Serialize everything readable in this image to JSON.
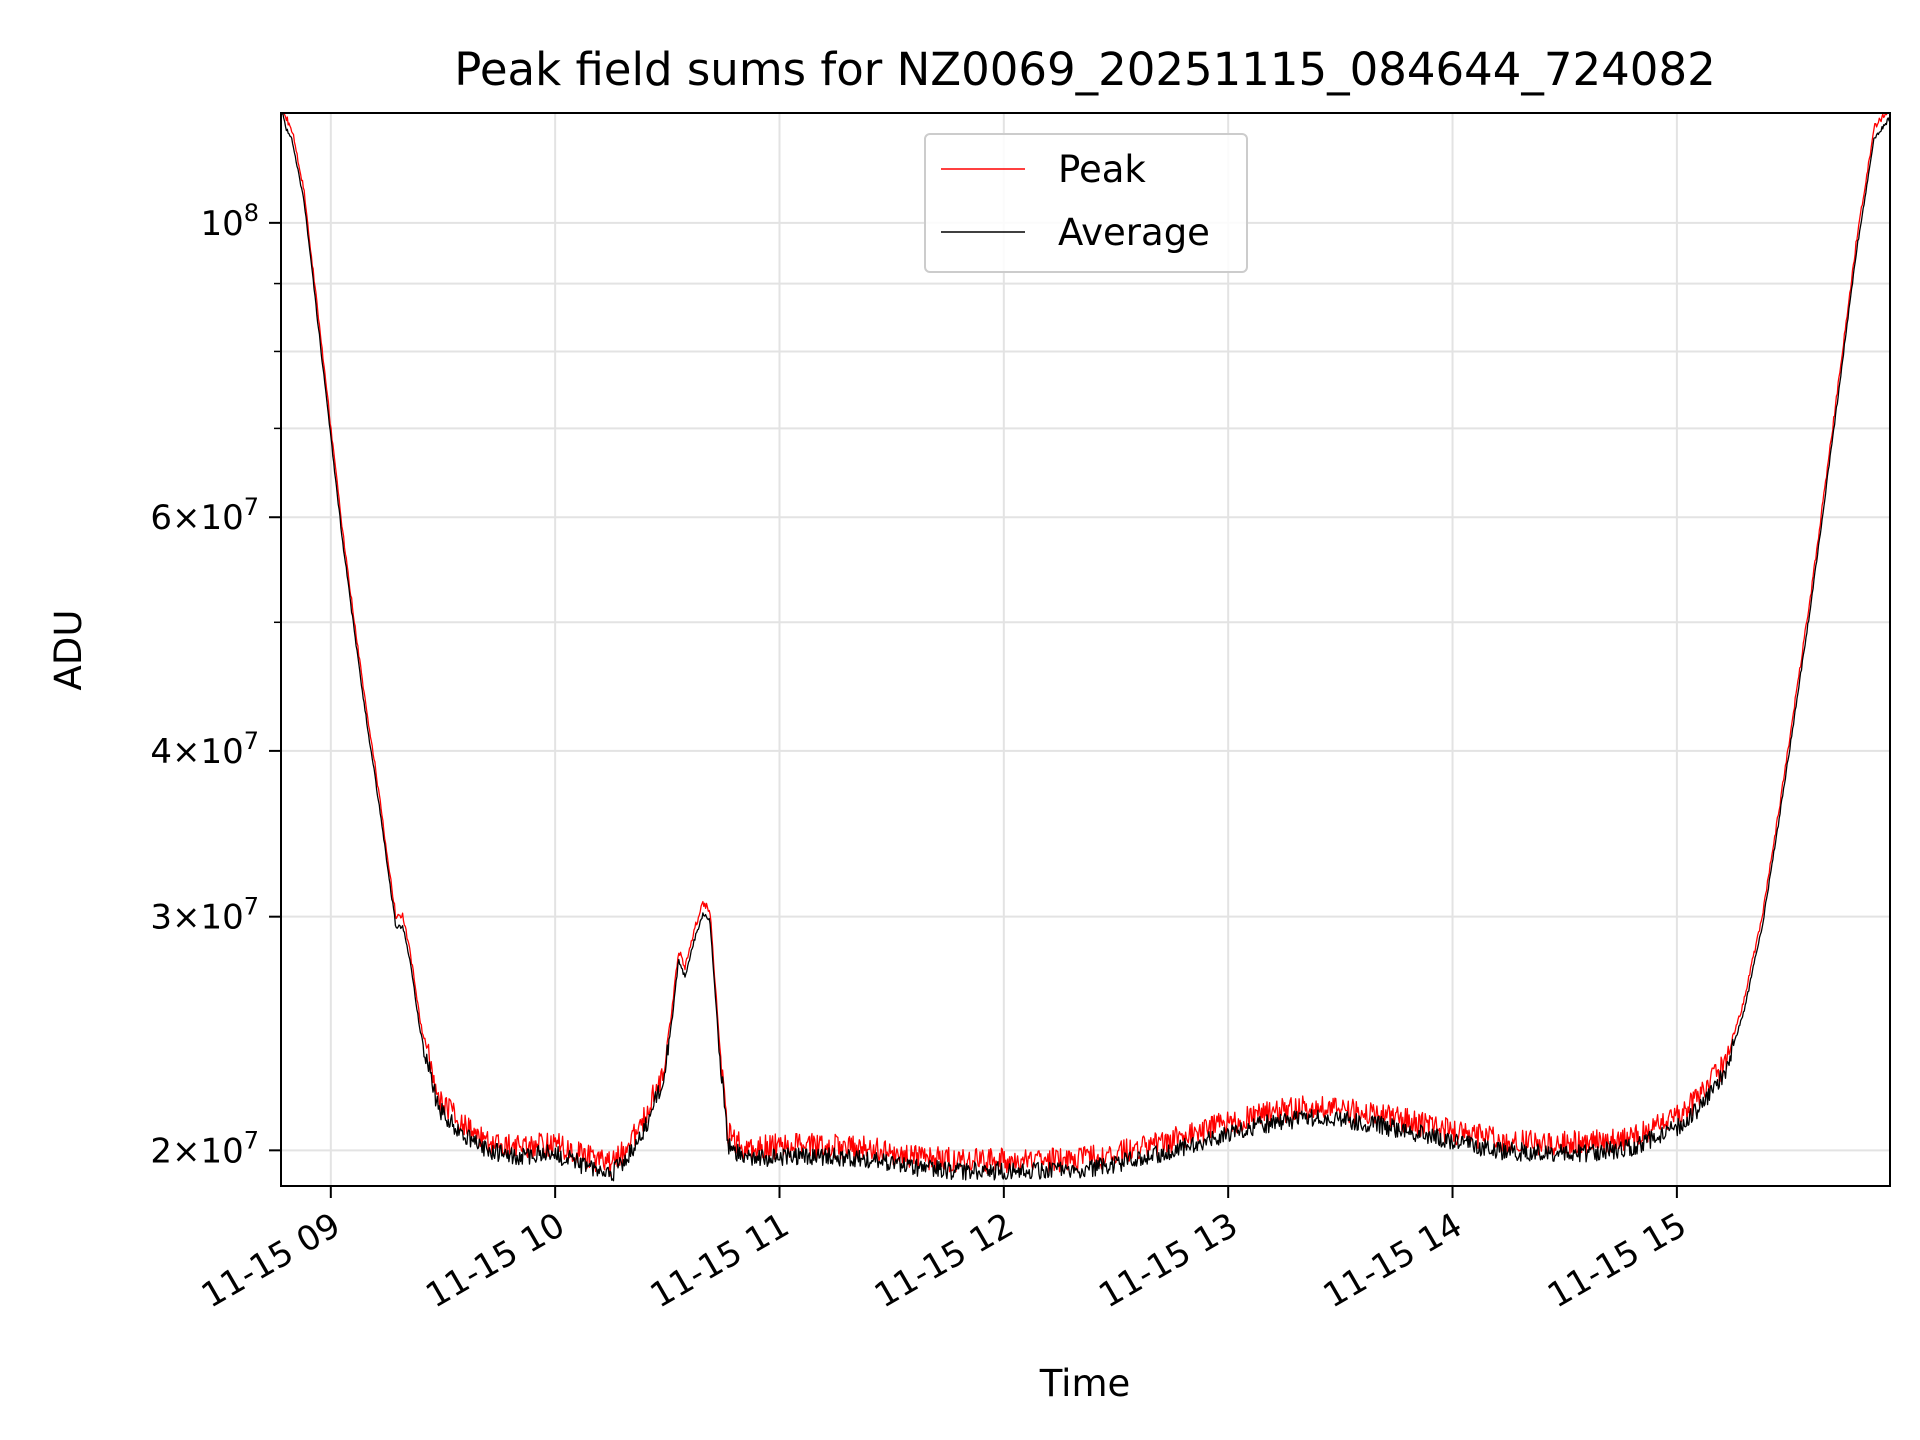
{
  "chart_data": {
    "type": "line",
    "title": "Peak field sums for NZ0069_20251115_084644_724082",
    "xlabel": "Time",
    "ylabel": "ADU",
    "yscale": "log",
    "ylim": [
      18800000,
      121000000
    ],
    "xlim_hours": [
      8.778,
      15.95
    ],
    "grid": true,
    "legend_position": "upper center",
    "x_ticks": [
      {
        "hour": 9,
        "label": "11-15 09"
      },
      {
        "hour": 10,
        "label": "11-15 10"
      },
      {
        "hour": 11,
        "label": "11-15 11"
      },
      {
        "hour": 12,
        "label": "11-15 12"
      },
      {
        "hour": 13,
        "label": "11-15 13"
      },
      {
        "hour": 14,
        "label": "11-15 14"
      },
      {
        "hour": 15,
        "label": "11-15 15"
      }
    ],
    "y_ticks": [
      {
        "value": 20000000,
        "mant": "2",
        "exp": "7"
      },
      {
        "value": 30000000,
        "mant": "3",
        "exp": "7"
      },
      {
        "value": 40000000,
        "mant": "4",
        "exp": "7"
      },
      {
        "value": 60000000,
        "mant": "6",
        "exp": "7"
      },
      {
        "value": 100000000,
        "mant": "",
        "exp": "8"
      }
    ],
    "y_minor_ticks": [
      50000000,
      70000000,
      80000000,
      90000000
    ],
    "series": [
      {
        "name": "Peak",
        "color": "#ff0000",
        "noise": 0.022,
        "offset": 1.018,
        "points": [
          [
            8.778,
            122000000
          ],
          [
            8.8,
            118000000
          ],
          [
            8.83,
            115000000
          ],
          [
            8.88,
            104000000
          ],
          [
            8.95,
            82000000
          ],
          [
            9.05,
            58000000
          ],
          [
            9.12,
            47000000
          ],
          [
            9.17,
            41000000
          ],
          [
            9.2,
            38000000
          ],
          [
            9.25,
            33000000
          ],
          [
            9.29,
            29500000
          ],
          [
            9.32,
            29500000
          ],
          [
            9.35,
            28000000
          ],
          [
            9.4,
            24500000
          ],
          [
            9.48,
            21500000
          ],
          [
            9.58,
            20600000
          ],
          [
            9.7,
            20000000
          ],
          [
            9.85,
            19800000
          ],
          [
            10.0,
            19900000
          ],
          [
            10.15,
            19400000
          ],
          [
            10.25,
            19200000
          ],
          [
            10.32,
            19700000
          ],
          [
            10.4,
            20800000
          ],
          [
            10.48,
            22500000
          ],
          [
            10.52,
            25000000
          ],
          [
            10.55,
            27800000
          ],
          [
            10.58,
            27000000
          ],
          [
            10.62,
            28800000
          ],
          [
            10.66,
            30200000
          ],
          [
            10.69,
            29800000
          ],
          [
            10.73,
            24000000
          ],
          [
            10.77,
            20200000
          ],
          [
            10.85,
            19700000
          ],
          [
            11.0,
            19800000
          ],
          [
            11.2,
            19800000
          ],
          [
            11.4,
            19700000
          ],
          [
            11.6,
            19400000
          ],
          [
            11.8,
            19300000
          ],
          [
            12.0,
            19300000
          ],
          [
            12.2,
            19300000
          ],
          [
            12.4,
            19400000
          ],
          [
            12.6,
            19700000
          ],
          [
            12.8,
            20100000
          ],
          [
            13.0,
            20600000
          ],
          [
            13.2,
            21000000
          ],
          [
            13.4,
            21200000
          ],
          [
            13.6,
            21000000
          ],
          [
            13.8,
            20700000
          ],
          [
            14.0,
            20300000
          ],
          [
            14.2,
            20000000
          ],
          [
            14.4,
            19900000
          ],
          [
            14.6,
            19900000
          ],
          [
            14.8,
            20100000
          ],
          [
            15.0,
            20800000
          ],
          [
            15.12,
            21700000
          ],
          [
            15.22,
            23000000
          ],
          [
            15.3,
            25500000
          ],
          [
            15.38,
            29500000
          ],
          [
            15.45,
            35000000
          ],
          [
            15.52,
            42000000
          ],
          [
            15.6,
            52000000
          ],
          [
            15.7,
            70000000
          ],
          [
            15.8,
            95000000
          ],
          [
            15.88,
            116000000
          ],
          [
            15.95,
            120000000
          ]
        ]
      },
      {
        "name": "Average",
        "color": "#000000",
        "noise": 0.016,
        "offset": 1.0,
        "points": [
          [
            8.778,
            122000000
          ],
          [
            8.8,
            118000000
          ],
          [
            8.83,
            115000000
          ],
          [
            8.88,
            104000000
          ],
          [
            8.95,
            82000000
          ],
          [
            9.05,
            58000000
          ],
          [
            9.12,
            47000000
          ],
          [
            9.17,
            41000000
          ],
          [
            9.2,
            38000000
          ],
          [
            9.25,
            33000000
          ],
          [
            9.29,
            29500000
          ],
          [
            9.32,
            29500000
          ],
          [
            9.35,
            28000000
          ],
          [
            9.4,
            24500000
          ],
          [
            9.48,
            21500000
          ],
          [
            9.58,
            20600000
          ],
          [
            9.7,
            20000000
          ],
          [
            9.85,
            19800000
          ],
          [
            10.0,
            19900000
          ],
          [
            10.15,
            19400000
          ],
          [
            10.25,
            19200000
          ],
          [
            10.32,
            19700000
          ],
          [
            10.4,
            20800000
          ],
          [
            10.48,
            22500000
          ],
          [
            10.52,
            25000000
          ],
          [
            10.55,
            27800000
          ],
          [
            10.58,
            27000000
          ],
          [
            10.62,
            28800000
          ],
          [
            10.66,
            30200000
          ],
          [
            10.69,
            29800000
          ],
          [
            10.73,
            24000000
          ],
          [
            10.77,
            20200000
          ],
          [
            10.85,
            19700000
          ],
          [
            11.0,
            19800000
          ],
          [
            11.2,
            19800000
          ],
          [
            11.4,
            19700000
          ],
          [
            11.6,
            19400000
          ],
          [
            11.8,
            19300000
          ],
          [
            12.0,
            19300000
          ],
          [
            12.2,
            19300000
          ],
          [
            12.4,
            19400000
          ],
          [
            12.6,
            19700000
          ],
          [
            12.8,
            20100000
          ],
          [
            13.0,
            20600000
          ],
          [
            13.2,
            21000000
          ],
          [
            13.4,
            21200000
          ],
          [
            13.6,
            21000000
          ],
          [
            13.8,
            20700000
          ],
          [
            14.0,
            20300000
          ],
          [
            14.2,
            20000000
          ],
          [
            14.4,
            19900000
          ],
          [
            14.6,
            19900000
          ],
          [
            14.8,
            20100000
          ],
          [
            15.0,
            20800000
          ],
          [
            15.12,
            21700000
          ],
          [
            15.22,
            23000000
          ],
          [
            15.3,
            25500000
          ],
          [
            15.38,
            29500000
          ],
          [
            15.45,
            35000000
          ],
          [
            15.52,
            42000000
          ],
          [
            15.6,
            52000000
          ],
          [
            15.7,
            70000000
          ],
          [
            15.8,
            95000000
          ],
          [
            15.88,
            116000000
          ],
          [
            15.95,
            120000000
          ]
        ]
      }
    ]
  }
}
